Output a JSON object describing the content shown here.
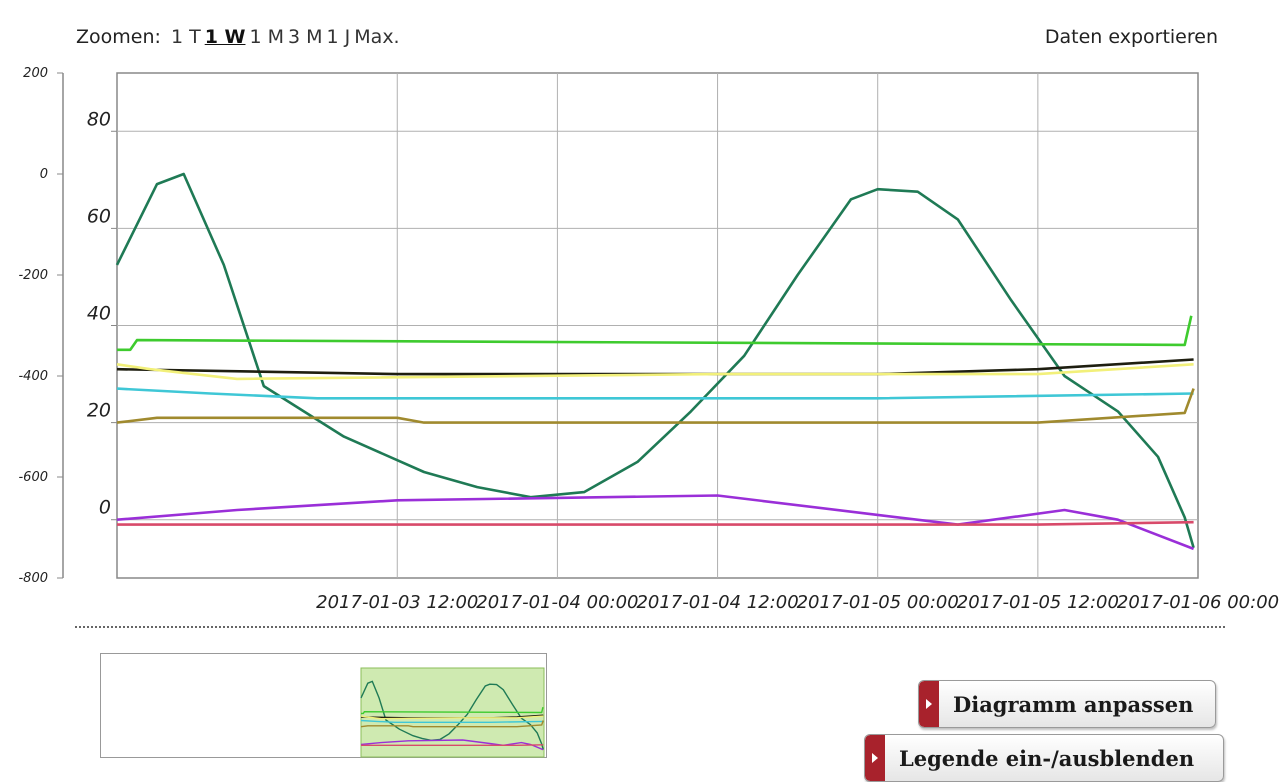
{
  "toolbar": {
    "zoom_label": "Zoomen:",
    "zoom_options": [
      "1 T",
      "1 W",
      "1 M",
      "3 M",
      "1 J",
      "Max."
    ],
    "active_zoom": "1 W",
    "export_label": "Daten exportieren"
  },
  "buttons": {
    "adjust_chart": "Diagramm anpassen",
    "toggle_legend": "Legende ein-/ausblenden"
  },
  "chart_data": {
    "type": "line",
    "title": "",
    "x_range": [
      "2017-01-02 15:00",
      "2017-01-06 00:00"
    ],
    "x_ticks": [
      "2017-01-03 12:00",
      "2017-01-04 00:00",
      "2017-01-04 12:00",
      "2017-01-05 00:00",
      "2017-01-05 12:00",
      "2017-01-06 00:00"
    ],
    "y_axes": [
      {
        "side": "left-outer",
        "range": [
          -800,
          200
        ],
        "ticks": [
          200,
          0,
          -200,
          -400,
          -600,
          -800
        ]
      },
      {
        "side": "left-inner",
        "range": [
          -12,
          92
        ],
        "ticks": [
          80,
          60,
          40,
          20,
          0
        ]
      }
    ],
    "grid": true,
    "legend": "hidden",
    "series": [
      {
        "color": "#1f7a55",
        "axis": "left-outer",
        "points": [
          [
            "2017-01-02 15:00",
            -180
          ],
          [
            "2017-01-02 18:00",
            -20
          ],
          [
            "2017-01-02 20:00",
            0
          ],
          [
            "2017-01-02 23:00",
            -180
          ],
          [
            "2017-01-03 02:00",
            -420
          ],
          [
            "2017-01-03 08:00",
            -520
          ],
          [
            "2017-01-03 14:00",
            -590
          ],
          [
            "2017-01-03 18:00",
            -620
          ],
          [
            "2017-01-03 22:00",
            -640
          ],
          [
            "2017-01-04 02:00",
            -630
          ],
          [
            "2017-01-04 06:00",
            -570
          ],
          [
            "2017-01-04 10:00",
            -470
          ],
          [
            "2017-01-04 14:00",
            -360
          ],
          [
            "2017-01-04 18:00",
            -200
          ],
          [
            "2017-01-04 22:00",
            -50
          ],
          [
            "2017-01-05 00:00",
            -30
          ],
          [
            "2017-01-05 03:00",
            -35
          ],
          [
            "2017-01-05 06:00",
            -90
          ],
          [
            "2017-01-05 10:00",
            -250
          ],
          [
            "2017-01-05 14:00",
            -400
          ],
          [
            "2017-01-05 18:00",
            -470
          ],
          [
            "2017-01-05 21:00",
            -560
          ],
          [
            "2017-01-05 23:00",
            -680
          ],
          [
            "2017-01-05 23:40",
            -740
          ]
        ]
      },
      {
        "color": "#3ecb2e",
        "axis": "left-inner",
        "points": [
          [
            "2017-01-02 15:00",
            35
          ],
          [
            "2017-01-02 16:00",
            35
          ],
          [
            "2017-01-02 16:30",
            37
          ],
          [
            "2017-01-05 23:00",
            36
          ],
          [
            "2017-01-05 23:30",
            42
          ]
        ]
      },
      {
        "color": "#1e1e10",
        "axis": "left-inner",
        "points": [
          [
            "2017-01-02 15:00",
            31
          ],
          [
            "2017-01-03 12:00",
            30
          ],
          [
            "2017-01-04 12:00",
            30
          ],
          [
            "2017-01-05 00:00",
            30
          ],
          [
            "2017-01-05 12:00",
            31
          ],
          [
            "2017-01-05 23:40",
            33
          ]
        ]
      },
      {
        "color": "#f2f07a",
        "axis": "left-inner",
        "points": [
          [
            "2017-01-02 15:00",
            32
          ],
          [
            "2017-01-02 17:30",
            31
          ],
          [
            "2017-01-03 00:00",
            29
          ],
          [
            "2017-01-04 12:00",
            30
          ],
          [
            "2017-01-05 12:00",
            30
          ],
          [
            "2017-01-05 23:40",
            32
          ]
        ]
      },
      {
        "color": "#3fc7d6",
        "axis": "left-inner",
        "points": [
          [
            "2017-01-02 15:00",
            27
          ],
          [
            "2017-01-02 22:00",
            26
          ],
          [
            "2017-01-03 06:00",
            25
          ],
          [
            "2017-01-05 00:00",
            25
          ],
          [
            "2017-01-05 23:40",
            26
          ]
        ]
      },
      {
        "color": "#a08a2e",
        "axis": "left-inner",
        "points": [
          [
            "2017-01-02 15:00",
            20
          ],
          [
            "2017-01-02 18:00",
            21
          ],
          [
            "2017-01-03 12:00",
            21
          ],
          [
            "2017-01-03 14:00",
            20
          ],
          [
            "2017-01-05 12:00",
            20
          ],
          [
            "2017-01-05 23:00",
            22
          ],
          [
            "2017-01-05 23:40",
            27
          ]
        ]
      },
      {
        "color": "#9a2fd8",
        "axis": "left-inner",
        "points": [
          [
            "2017-01-02 15:00",
            0
          ],
          [
            "2017-01-03 00:00",
            2
          ],
          [
            "2017-01-03 12:00",
            4
          ],
          [
            "2017-01-04 12:00",
            5
          ],
          [
            "2017-01-05 00:00",
            1
          ],
          [
            "2017-01-05 06:00",
            -1
          ],
          [
            "2017-01-05 14:00",
            2
          ],
          [
            "2017-01-05 18:00",
            0
          ],
          [
            "2017-01-05 23:40",
            -6
          ]
        ]
      },
      {
        "color": "#d84a6a",
        "axis": "left-inner",
        "points": [
          [
            "2017-01-02 15:00",
            -1
          ],
          [
            "2017-01-03 12:00",
            -1
          ],
          [
            "2017-01-04 12:00",
            -1
          ],
          [
            "2017-01-05 12:00",
            -1
          ],
          [
            "2017-01-05 23:40",
            -0.5
          ]
        ]
      }
    ]
  }
}
